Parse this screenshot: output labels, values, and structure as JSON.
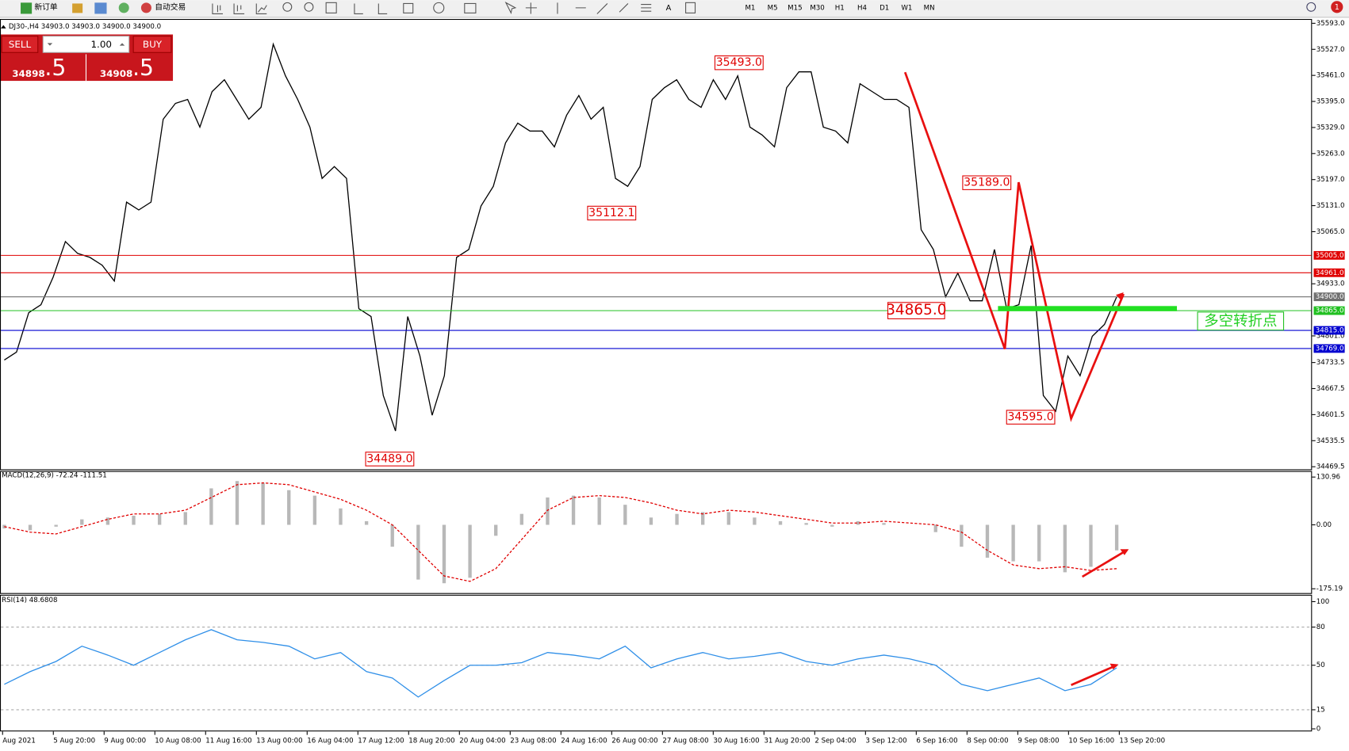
{
  "toolbar": {
    "buttons": [
      "新订单",
      "自动交易"
    ],
    "timeframes": [
      "M1",
      "M5",
      "M15",
      "M30",
      "H1",
      "H4",
      "D1",
      "W1",
      "MN"
    ],
    "alert_count": "1"
  },
  "symbol_info": "DJ30-,H4  34903.0 34903.0 34900.0 34900.0",
  "trade_panel": {
    "sell": "SELL",
    "buy": "BUY",
    "lots": "1.00",
    "sell_main": "34898",
    "sell_frac": ".5",
    "buy_main": "34908",
    "buy_frac": ".5"
  },
  "time_axis": [
    "Aug 2021",
    "5 Aug 20:00",
    "9 Aug 00:00",
    "10 Aug 08:00",
    "11 Aug 16:00",
    "13 Aug 00:00",
    "16 Aug 04:00",
    "17 Aug 12:00",
    "18 Aug 20:00",
    "20 Aug 04:00",
    "23 Aug 08:00",
    "24 Aug 16:00",
    "26 Aug 00:00",
    "27 Aug 08:00",
    "30 Aug 16:00",
    "31 Aug 20:00",
    "2 Sep 04:00",
    "3 Sep 12:00",
    "6 Sep 16:00",
    "8 Sep 00:00",
    "9 Sep 08:00",
    "10 Sep 16:00",
    "13 Sep 20:00"
  ],
  "chart_data": [
    {
      "type": "line",
      "color": "#000000",
      "values": [
        34740,
        34760,
        34860,
        34880,
        34950,
        35040,
        35010,
        35000,
        34980,
        34940,
        35140,
        35120,
        35140,
        35350,
        35390,
        35400,
        35330,
        35420,
        35450,
        35400,
        35350,
        35380,
        35540,
        35460,
        35400,
        35330,
        35200,
        35230,
        35200,
        34870,
        34850,
        34650,
        34560,
        34850,
        34750,
        34600,
        34700,
        35000,
        35020,
        35130,
        35180,
        35290,
        35340,
        35320,
        35320,
        35280,
        35360,
        35410,
        35350,
        35380,
        35200,
        35180,
        35230,
        35400,
        35430,
        35450,
        35400,
        35380,
        35450,
        35400,
        35460,
        35330,
        35310,
        35280,
        35430,
        35470,
        35470,
        35330,
        35320,
        35290,
        35440,
        35420,
        35400,
        35400,
        35380,
        35070,
        35020,
        34900,
        34960,
        34890,
        34890,
        35020,
        34870,
        34880,
        35030,
        34650,
        34610,
        34750,
        34700,
        34800,
        34830,
        34900
      ],
      "ylim": [
        34469.5,
        35593
      ],
      "yticks": [
        {
          "value": 35593,
          "label": "35593.0"
        },
        {
          "value": 35527,
          "label": "35527.0"
        },
        {
          "value": 35461,
          "label": "35461.0"
        },
        {
          "value": 35395,
          "label": "35395.0"
        },
        {
          "value": 35329,
          "label": "35329.0"
        },
        {
          "value": 35263,
          "label": "35263.0"
        },
        {
          "value": 35197,
          "label": "35197.0"
        },
        {
          "value": 35131,
          "label": "35131.0"
        },
        {
          "value": 35065,
          "label": "35065.0"
        },
        {
          "value": 34933,
          "label": "34933.0"
        },
        {
          "value": 34801,
          "label": "34801.0"
        },
        {
          "value": 34733.5,
          "label": "34733.5"
        },
        {
          "value": 34667.5,
          "label": "34667.5"
        },
        {
          "value": 34601.5,
          "label": "34601.5"
        },
        {
          "value": 34535.5,
          "label": "34535.5"
        },
        {
          "value": 34469.5,
          "label": "34469.5"
        }
      ],
      "levels": [
        {
          "value": 35005,
          "label": "35005.0",
          "color": "#e00000"
        },
        {
          "value": 34961,
          "label": "34961.0",
          "color": "#e00000"
        },
        {
          "value": 34900,
          "label": "34900.0",
          "color": "#707070"
        },
        {
          "value": 34865,
          "label": "34865.0",
          "color": "#20c020"
        },
        {
          "value": 34815,
          "label": "34815.0",
          "color": "#0000d0"
        },
        {
          "value": 34769,
          "label": "34769.0",
          "color": "#0000d0"
        }
      ],
      "annotations": [
        {
          "value": 35493,
          "label": "35493.0"
        },
        {
          "value": 35189,
          "label": "35189.0"
        },
        {
          "value": 35112.1,
          "label": "35112.1"
        },
        {
          "value": 34865,
          "label": "34865.0"
        },
        {
          "value": 34595,
          "label": "34595.0"
        },
        {
          "value": 34489,
          "label": "34489.0"
        }
      ],
      "note": "多空转折点"
    },
    {
      "type": "bar",
      "title": "MACD(12,26,9) -72.24 -111.51",
      "color": "#b8b8b8",
      "signal_color": "#e00000",
      "values": [
        -10,
        -15,
        -5,
        15,
        20,
        25,
        30,
        35,
        100,
        120,
        115,
        95,
        80,
        45,
        10,
        -60,
        -150,
        -160,
        -145,
        -30,
        30,
        75,
        80,
        75,
        55,
        20,
        30,
        35,
        35,
        20,
        10,
        5,
        -5,
        10,
        5,
        0,
        -20,
        -60,
        -90,
        -100,
        -100,
        -130,
        -115,
        -70
      ],
      "signal": [
        -5,
        -20,
        -25,
        -5,
        15,
        30,
        30,
        40,
        75,
        110,
        115,
        110,
        90,
        70,
        40,
        0,
        -70,
        -140,
        -155,
        -120,
        -40,
        40,
        75,
        80,
        75,
        60,
        40,
        30,
        40,
        35,
        25,
        15,
        5,
        5,
        10,
        5,
        0,
        -20,
        -70,
        -110,
        -120,
        -115,
        -125,
        -120
      ],
      "ylim": [
        -175.19,
        130.96
      ],
      "yticks": [
        {
          "value": 130.96,
          "label": "130.96"
        },
        {
          "value": 0,
          "label": "0.00"
        },
        {
          "value": -175.19,
          "label": "-175.19"
        }
      ]
    },
    {
      "type": "line",
      "title": "RSI(14) 48.6808",
      "color": "#2f8fe8",
      "grid": true,
      "values": [
        35,
        45,
        53,
        65,
        58,
        50,
        60,
        70,
        78,
        70,
        68,
        65,
        55,
        60,
        45,
        40,
        25,
        38,
        50,
        50,
        52,
        60,
        58,
        55,
        65,
        48,
        55,
        60,
        55,
        57,
        60,
        53,
        50,
        55,
        58,
        55,
        50,
        35,
        30,
        35,
        40,
        30,
        35,
        48
      ],
      "ylim": [
        0,
        100
      ],
      "yticks": [
        100,
        80,
        50,
        15,
        0
      ]
    }
  ]
}
